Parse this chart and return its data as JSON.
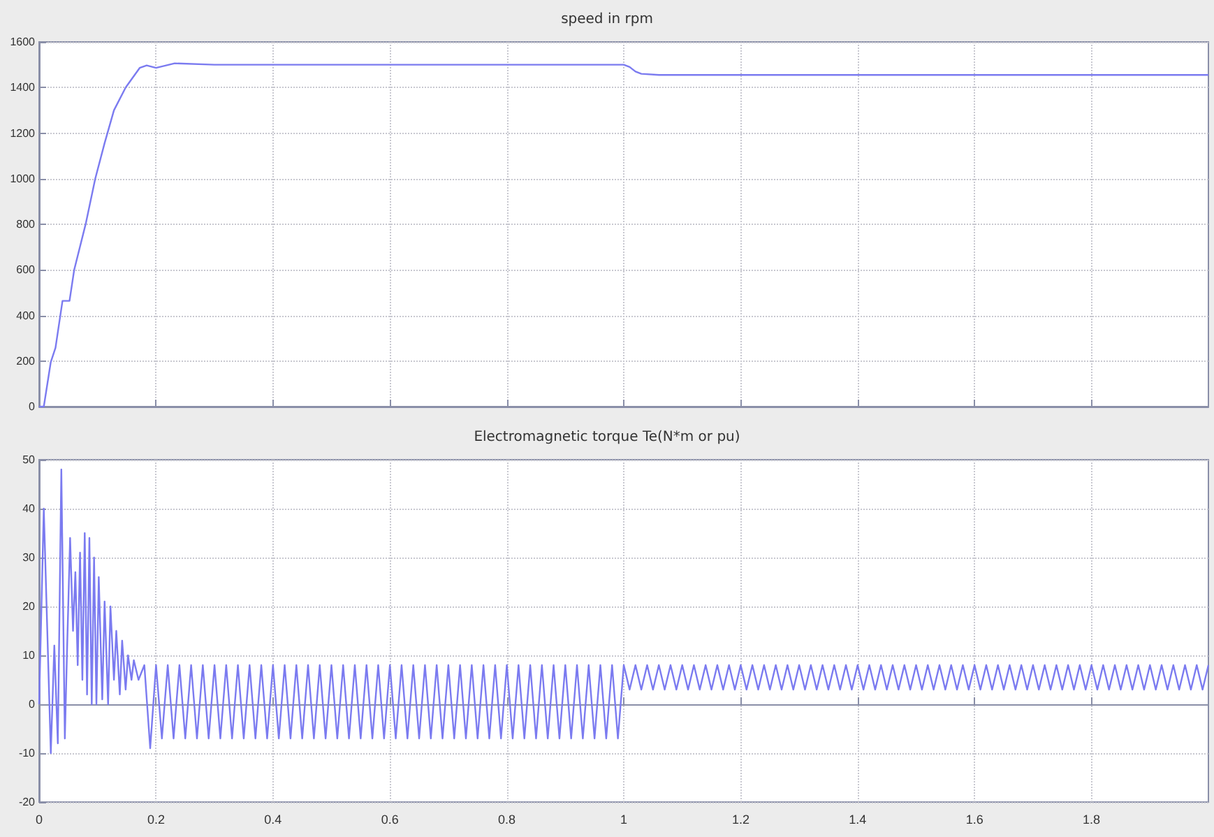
{
  "chart_data": [
    {
      "type": "line",
      "title": "speed in rpm",
      "xlim": [
        0,
        2
      ],
      "xticks": [
        0,
        0.2,
        0.4,
        0.6,
        0.8,
        1,
        1.2,
        1.4,
        1.6,
        1.8
      ],
      "ylim": [
        0,
        1600
      ],
      "yticks": [
        0,
        200,
        400,
        600,
        800,
        1000,
        1200,
        1400,
        1600
      ],
      "tick_labels": "y",
      "grid": true,
      "marker": "none",
      "series": [
        {
          "color": "#7b7bf0",
          "x": [
            0,
            0.008,
            0.02,
            0.028,
            0.04,
            0.052,
            0.06,
            0.08,
            0.096,
            0.112,
            0.128,
            0.148,
            0.172,
            0.184,
            0.2,
            0.232,
            0.3,
            0.5,
            0.8,
            1.0,
            1.01,
            1.02,
            1.03,
            1.06,
            1.2,
            1.5,
            2.0
          ],
          "values": [
            0,
            0,
            196,
            258,
            464,
            464,
            600,
            805,
            1000,
            1156,
            1300,
            1400,
            1486,
            1497,
            1486,
            1506,
            1500,
            1500,
            1500,
            1500,
            1490,
            1470,
            1460,
            1455,
            1455,
            1455,
            1455
          ]
        }
      ]
    },
    {
      "type": "line",
      "title": "Electromagnetic torque Te(N*m or pu)",
      "xlim": [
        0,
        2
      ],
      "xticks": [
        0,
        0.2,
        0.4,
        0.6,
        0.8,
        1,
        1.2,
        1.4,
        1.6,
        1.8
      ],
      "ylim": [
        -20,
        50
      ],
      "yticks": [
        -20,
        -10,
        0,
        10,
        20,
        30,
        40,
        50
      ],
      "grid": true,
      "marker": "none",
      "series": [
        {
          "color": "#7b7bf0",
          "x": [
            0,
            0.008,
            0.014,
            0.02,
            0.026,
            0.032,
            0.038,
            0.044,
            0.048,
            0.053,
            0.058,
            0.062,
            0.066,
            0.07,
            0.074,
            0.078,
            0.082,
            0.086,
            0.09,
            0.094,
            0.098,
            0.102,
            0.108,
            0.112,
            0.118,
            0.122,
            0.128,
            0.132,
            0.138,
            0.142,
            0.148,
            0.152,
            0.158,
            0.162,
            0.17,
            0.18,
            0.19,
            0.2,
            0.21,
            0.22,
            0.23,
            0.24,
            0.25,
            0.26,
            0.27,
            0.28,
            0.29,
            0.3,
            0.31,
            0.32,
            0.33,
            0.34,
            0.35,
            0.36,
            0.37,
            0.38,
            0.39,
            0.4,
            0.41,
            0.42,
            0.43,
            0.44,
            0.45,
            0.46,
            0.47,
            0.48,
            0.49,
            0.5,
            0.51,
            0.52,
            0.53,
            0.54,
            0.55,
            0.56,
            0.57,
            0.58,
            0.59,
            0.6,
            0.61,
            0.62,
            0.63,
            0.64,
            0.65,
            0.66,
            0.67,
            0.68,
            0.69,
            0.7,
            0.71,
            0.72,
            0.73,
            0.74,
            0.75,
            0.76,
            0.77,
            0.78,
            0.79,
            0.8,
            0.81,
            0.82,
            0.83,
            0.84,
            0.85,
            0.86,
            0.87,
            0.88,
            0.89,
            0.9,
            0.91,
            0.92,
            0.93,
            0.94,
            0.95,
            0.96,
            0.97,
            0.98,
            0.99,
            1.0,
            1.01,
            1.02,
            1.03,
            1.04,
            1.05,
            1.06,
            1.07,
            1.08,
            1.09,
            1.1,
            1.11,
            1.12,
            1.13,
            1.14,
            1.15,
            1.16,
            1.17,
            1.18,
            1.19,
            1.2,
            1.21,
            1.22,
            1.23,
            1.24,
            1.25,
            1.26,
            1.27,
            1.28,
            1.29,
            1.3,
            1.31,
            1.32,
            1.33,
            1.34,
            1.35,
            1.36,
            1.37,
            1.38,
            1.39,
            1.4,
            1.41,
            1.42,
            1.43,
            1.44,
            1.45,
            1.46,
            1.47,
            1.48,
            1.49,
            1.5,
            1.51,
            1.52,
            1.53,
            1.54,
            1.55,
            1.56,
            1.57,
            1.58,
            1.59,
            1.6,
            1.61,
            1.62,
            1.63,
            1.64,
            1.65,
            1.66,
            1.67,
            1.68,
            1.69,
            1.7,
            1.71,
            1.72,
            1.73,
            1.74,
            1.75,
            1.76,
            1.77,
            1.78,
            1.79,
            1.8,
            1.81,
            1.82,
            1.83,
            1.84,
            1.85,
            1.86,
            1.87,
            1.88,
            1.89,
            1.9,
            1.91,
            1.92,
            1.93,
            1.94,
            1.95,
            1.96,
            1.97,
            1.98,
            1.99,
            2.0
          ],
          "values": [
            0,
            40,
            15,
            -10,
            12,
            -8,
            48,
            -7,
            12,
            34,
            15,
            27,
            8,
            31,
            5,
            35,
            2,
            34,
            0,
            30,
            0,
            26,
            1,
            21,
            0,
            20,
            5,
            15,
            2,
            13,
            3,
            10,
            5,
            9,
            5,
            8,
            -9,
            8,
            -7,
            8,
            -7,
            8,
            -7,
            8,
            -7,
            8,
            -7,
            8,
            -7,
            8,
            -7,
            8,
            -7,
            8,
            -7,
            8,
            -7,
            8,
            -7,
            8,
            -7,
            8,
            -7,
            8,
            -7,
            8,
            -7,
            8,
            -7,
            8,
            -7,
            8,
            -7,
            8,
            -7,
            8,
            -7,
            8,
            -7,
            8,
            -7,
            8,
            -7,
            8,
            -7,
            8,
            -7,
            8,
            -7,
            8,
            -7,
            8,
            -7,
            8,
            -7,
            8,
            -7,
            8,
            -7,
            8,
            -7,
            8,
            -7,
            8,
            -7,
            8,
            -7,
            8,
            -7,
            8,
            -7,
            8,
            -7,
            8,
            -7,
            8,
            -7,
            8,
            3,
            8,
            3,
            8,
            3,
            8,
            3,
            8,
            3,
            8,
            3,
            8,
            3,
            8,
            3,
            8,
            3,
            8,
            3,
            8,
            3,
            8,
            3,
            8,
            3,
            8,
            3,
            8,
            3,
            8,
            3,
            8,
            3,
            8,
            3,
            8,
            3,
            8,
            3,
            8,
            3,
            8,
            3,
            8,
            3,
            8,
            3,
            8,
            3,
            8,
            3,
            8,
            3,
            8,
            3,
            8,
            3,
            8,
            3,
            8,
            3,
            8,
            3,
            8,
            3,
            8,
            3,
            8,
            3,
            8,
            3,
            8,
            3,
            8,
            3,
            8,
            3,
            8,
            3,
            8,
            3,
            8,
            3,
            8,
            3,
            8,
            3,
            8,
            3,
            8,
            3,
            8,
            3,
            8,
            3,
            8,
            3,
            8,
            3,
            8
          ]
        }
      ]
    }
  ]
}
